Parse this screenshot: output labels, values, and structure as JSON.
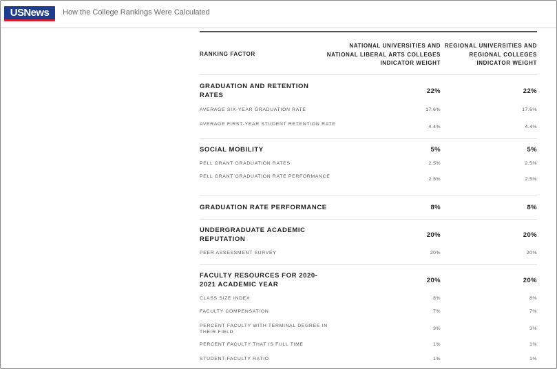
{
  "header": {
    "logo_text": "USNews",
    "title": "How the College Rankings Were Calculated"
  },
  "colors": {
    "logo_blue": "#1d3c8e",
    "logo_red": "#d3202f"
  },
  "table": {
    "columns": {
      "factor": "RANKING FACTOR",
      "national": "NATIONAL UNIVERSITIES AND NATIONAL LIBERAL ARTS COLLEGES INDICATOR WEIGHT",
      "regional": "REGIONAL UNIVERSITIES AND REGIONAL COLLEGES INDICATOR WEIGHT"
    },
    "sections": [
      {
        "name": "GRADUATION AND RETENTION RATES",
        "national": "22%",
        "regional": "22%",
        "items": [
          {
            "name": "AVERAGE SIX-YEAR GRADUATION RATE",
            "national": "17.6%",
            "regional": "17.6%"
          },
          {
            "name": "AVERAGE FIRST-YEAR STUDENT RETENTION RATE",
            "national": "4.4%",
            "regional": "4.4%"
          }
        ]
      },
      {
        "name": "SOCIAL MOBILITY",
        "national": "5%",
        "regional": "5%",
        "items": [
          {
            "name": "PELL GRANT GRADUATION RATES",
            "national": "2.5%",
            "regional": "2.5%"
          },
          {
            "name": "PELL GRANT GRADUATION RATE PERFORMANCE",
            "national": "2.5%",
            "regional": "2.5%"
          }
        ]
      },
      {
        "name": "GRADUATION RATE PERFORMANCE",
        "national": "8%",
        "regional": "8%",
        "items": []
      },
      {
        "name": "UNDERGRADUATE ACADEMIC REPUTATION",
        "national": "20%",
        "regional": "20%",
        "items": [
          {
            "name": "PEER ASSESSMENT SURVEY",
            "national": "20%",
            "regional": "20%"
          }
        ]
      },
      {
        "name": "FACULTY RESOURCES FOR 2020-2021 ACADEMIC YEAR",
        "national": "20%",
        "regional": "20%",
        "items": [
          {
            "name": "CLASS SIZE INDEX",
            "national": "8%",
            "regional": "8%"
          },
          {
            "name": "FACULTY COMPENSATION",
            "national": "7%",
            "regional": "7%"
          },
          {
            "name": "PERCENT FACULTY WITH TERMINAL DEGREE IN THEIR FIELD",
            "national": "3%",
            "regional": "3%"
          },
          {
            "name": "PERCENT FACULTY THAT IS FULL TIME",
            "national": "1%",
            "regional": "1%"
          },
          {
            "name": "STUDENT-FACULTY RATIO",
            "national": "1%",
            "regional": "1%"
          }
        ]
      }
    ]
  }
}
